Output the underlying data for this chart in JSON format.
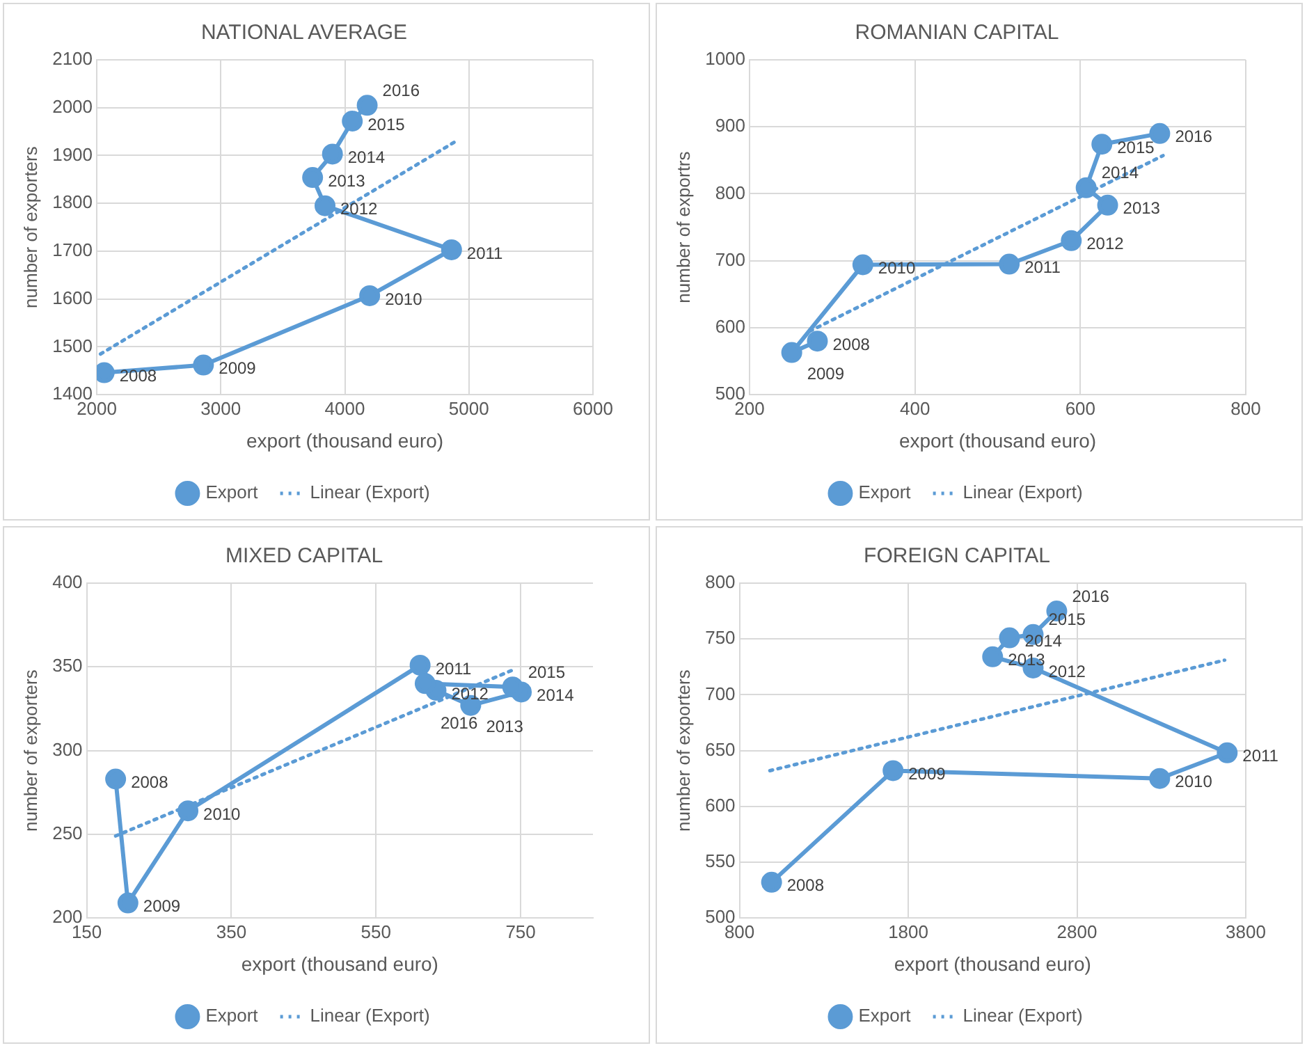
{
  "chart_data": [
    {
      "type": "line",
      "title": "NATIONAL AVERAGE",
      "xlabel": "export (thousand euro)",
      "ylabel": "number of exporters",
      "xlim": [
        2000,
        6000
      ],
      "xticks": [
        2000,
        3000,
        4000,
        5000,
        6000
      ],
      "ylim": [
        1400,
        2100
      ],
      "yticks": [
        1400,
        1500,
        1600,
        1700,
        1800,
        1900,
        2000,
        2100
      ],
      "grid": true,
      "legend": "bottom",
      "series": [
        {
          "name": "Export",
          "color": "#5b9bd5",
          "marker": "circle",
          "line_style": "solid",
          "x": [
            2060,
            2860,
            4200,
            4860,
            3840,
            3740,
            3900,
            4060,
            4180
          ],
          "values": [
            1446,
            1462,
            1607,
            1703,
            1795,
            1854,
            1903,
            1972,
            2005
          ]
        },
        {
          "name": "Linear (Export)",
          "color": "#5b9bd5",
          "marker": "none",
          "line_style": "dotted",
          "x": [
            2030,
            4890
          ],
          "values": [
            1485,
            1929
          ]
        }
      ],
      "annotations": [
        {
          "text": "2008",
          "x": 2060,
          "y": 1446
        },
        {
          "text": "2009",
          "x": 2860,
          "y": 1462
        },
        {
          "text": "2010",
          "x": 4200,
          "y": 1607
        },
        {
          "text": "2011",
          "x": 4860,
          "y": 1703
        },
        {
          "text": "2012",
          "x": 3840,
          "y": 1795
        },
        {
          "text": "2013",
          "x": 3740,
          "y": 1854
        },
        {
          "text": "2014",
          "x": 3900,
          "y": 1903
        },
        {
          "text": "2015",
          "x": 4060,
          "y": 1972
        },
        {
          "text": "2016",
          "x": 4180,
          "y": 2005
        }
      ]
    },
    {
      "type": "line",
      "title": "ROMANIAN CAPITAL",
      "xlabel": "export (thousand euro)",
      "ylabel": "number of exportrs",
      "xlim": [
        200,
        800
      ],
      "xticks": [
        200,
        400,
        600,
        800
      ],
      "ylim": [
        500,
        1000
      ],
      "yticks": [
        500,
        600,
        700,
        800,
        900,
        1000
      ],
      "grid": true,
      "legend": "bottom",
      "series": [
        {
          "name": "Export",
          "color": "#5b9bd5",
          "marker": "circle",
          "line_style": "solid",
          "x": [
            282,
            251,
            337,
            514,
            589,
            633,
            607,
            626,
            696
          ],
          "values": [
            580,
            563,
            694,
            695,
            730,
            783,
            809,
            874,
            890
          ]
        },
        {
          "name": "Linear (Export)",
          "color": "#5b9bd5",
          "marker": "none",
          "line_style": "dotted",
          "x": [
            273,
            700
          ],
          "values": [
            595,
            857
          ]
        }
      ],
      "annotations": [
        {
          "text": "2008",
          "x": 282,
          "y": 580
        },
        {
          "text": "2009",
          "x": 251,
          "y": 563
        },
        {
          "text": "2010",
          "x": 337,
          "y": 694
        },
        {
          "text": "2011",
          "x": 514,
          "y": 695
        },
        {
          "text": "2012",
          "x": 589,
          "y": 730
        },
        {
          "text": "2013",
          "x": 633,
          "y": 783
        },
        {
          "text": "2014",
          "x": 607,
          "y": 809
        },
        {
          "text": "2015",
          "x": 626,
          "y": 874
        },
        {
          "text": "2016",
          "x": 696,
          "y": 890
        }
      ]
    },
    {
      "type": "line",
      "title": "MIXED CAPITAL",
      "xlabel": "export (thousand euro)",
      "ylabel": "number of exporters",
      "xlim": [
        150,
        850
      ],
      "xticks": [
        150,
        350,
        550,
        750
      ],
      "ylim": [
        200,
        400
      ],
      "yticks": [
        200,
        250,
        300,
        350,
        400
      ],
      "grid": true,
      "legend": "bottom",
      "series": [
        {
          "name": "Export",
          "color": "#5b9bd5",
          "marker": "circle",
          "line_style": "solid",
          "x": [
            190,
            207,
            290,
            611,
            633,
            681,
            751,
            739,
            618
          ],
          "values": [
            283,
            209,
            264,
            351,
            336,
            327,
            335,
            338,
            340
          ]
        },
        {
          "name": "Linear (Export)",
          "color": "#5b9bd5",
          "marker": "none",
          "line_style": "dotted",
          "x": [
            190,
            744
          ],
          "values": [
            249,
            349
          ]
        }
      ],
      "annotations": [
        {
          "text": "2008",
          "x": 190,
          "y": 283
        },
        {
          "text": "2009",
          "x": 207,
          "y": 209
        },
        {
          "text": "2010",
          "x": 290,
          "y": 264
        },
        {
          "text": "2011",
          "x": 611,
          "y": 351
        },
        {
          "text": "2012",
          "x": 633,
          "y": 336
        },
        {
          "text": "2013",
          "x": 681,
          "y": 327
        },
        {
          "text": "2014",
          "x": 751,
          "y": 335
        },
        {
          "text": "2015",
          "x": 739,
          "y": 338
        },
        {
          "text": "2016",
          "x": 618,
          "y": 340
        }
      ]
    },
    {
      "type": "line",
      "title": "FOREIGN CAPITAL",
      "xlabel": "export (thousand euro)",
      "ylabel": "number of exporters",
      "xlim": [
        800,
        3800
      ],
      "xticks": [
        800,
        1800,
        2800,
        3800
      ],
      "ylim": [
        500,
        800
      ],
      "yticks": [
        500,
        550,
        600,
        650,
        700,
        750,
        800
      ],
      "grid": true,
      "legend": "bottom",
      "series": [
        {
          "name": "Export",
          "color": "#5b9bd5",
          "marker": "circle",
          "line_style": "solid",
          "x": [
            990,
            1710,
            3290,
            3690,
            2540,
            2300,
            2400,
            2540,
            2680
          ],
          "values": [
            532,
            632,
            625,
            648,
            724,
            734,
            751,
            754,
            775
          ]
        },
        {
          "name": "Linear (Export)",
          "color": "#5b9bd5",
          "marker": "none",
          "line_style": "dotted",
          "x": [
            980,
            3675
          ],
          "values": [
            632,
            731
          ]
        }
      ],
      "annotations": [
        {
          "text": "2008",
          "x": 990,
          "y": 532
        },
        {
          "text": "2009",
          "x": 1710,
          "y": 632
        },
        {
          "text": "2010",
          "x": 3290,
          "y": 625
        },
        {
          "text": "2011",
          "x": 3690,
          "y": 648
        },
        {
          "text": "2012",
          "x": 2540,
          "y": 724
        },
        {
          "text": "2013",
          "x": 2300,
          "y": 734
        },
        {
          "text": "2014",
          "x": 2400,
          "y": 751
        },
        {
          "text": "2015",
          "x": 2540,
          "y": 754
        },
        {
          "text": "2016",
          "x": 2680,
          "y": 775
        }
      ]
    }
  ]
}
